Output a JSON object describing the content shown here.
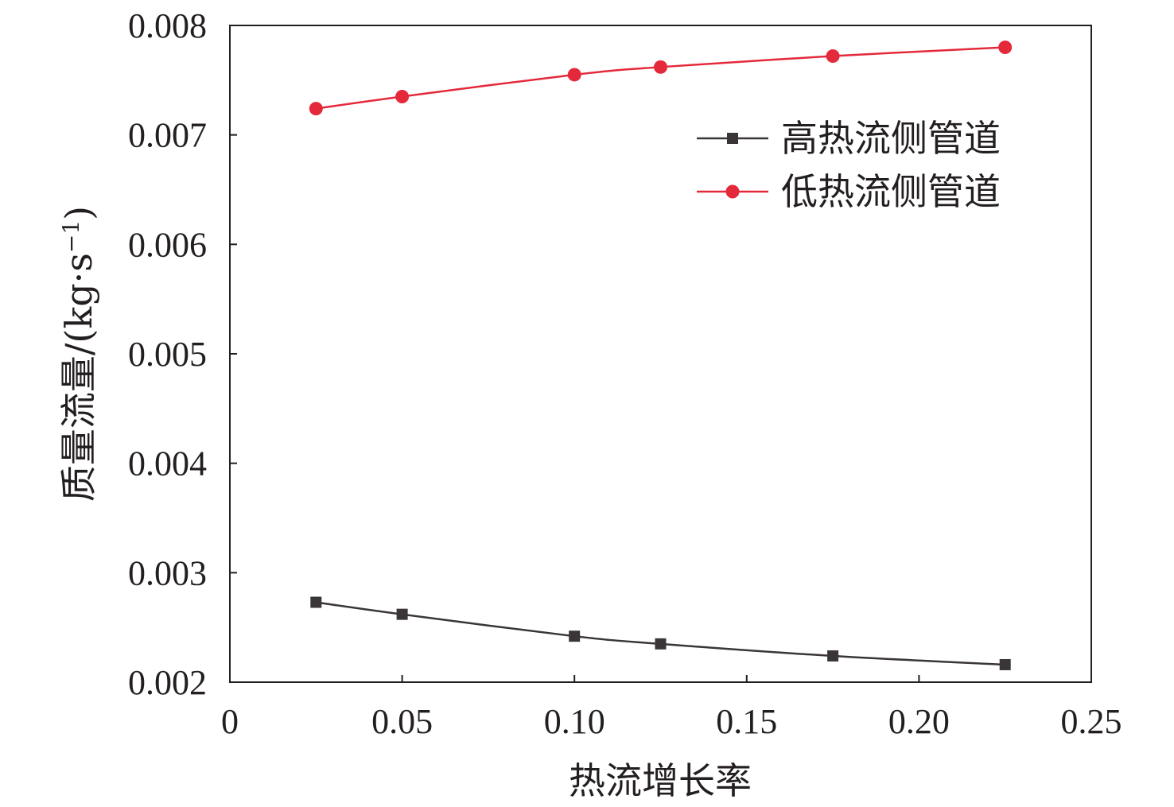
{
  "chart_data": {
    "type": "line",
    "xlabel": "热流增长率",
    "ylabel": "质量流量/(kg·s",
    "ylabel_sup": "−1",
    "ylabel_close": ")",
    "xlim": [
      0,
      0.25
    ],
    "ylim": [
      0.002,
      0.008
    ],
    "xticks": [
      {
        "value": 0,
        "label": "0"
      },
      {
        "value": 0.05,
        "label": "0.05"
      },
      {
        "value": 0.1,
        "label": "0.10"
      },
      {
        "value": 0.15,
        "label": "0.15"
      },
      {
        "value": 0.2,
        "label": "0.20"
      },
      {
        "value": 0.25,
        "label": "0.25"
      }
    ],
    "yticks": [
      {
        "value": 0.002,
        "label": "0.002"
      },
      {
        "value": 0.003,
        "label": "0.003"
      },
      {
        "value": 0.004,
        "label": "0.004"
      },
      {
        "value": 0.005,
        "label": "0.005"
      },
      {
        "value": 0.006,
        "label": "0.006"
      },
      {
        "value": 0.007,
        "label": "0.007"
      },
      {
        "value": 0.008,
        "label": "0.008"
      }
    ],
    "grid": false,
    "legend_position": "upper-right",
    "series": [
      {
        "name": "高热流侧管道",
        "color": "#3a3536",
        "marker": "square",
        "x": [
          0.025,
          0.05,
          0.1,
          0.125,
          0.175,
          0.225
        ],
        "y": [
          0.00273,
          0.00262,
          0.00242,
          0.00235,
          0.00224,
          0.00216
        ]
      },
      {
        "name": "低热流侧管道",
        "color": "#e4293b",
        "marker": "circle",
        "x": [
          0.025,
          0.05,
          0.1,
          0.125,
          0.175,
          0.225
        ],
        "y": [
          0.00724,
          0.00735,
          0.00755,
          0.00762,
          0.00772,
          0.0078
        ]
      }
    ]
  }
}
